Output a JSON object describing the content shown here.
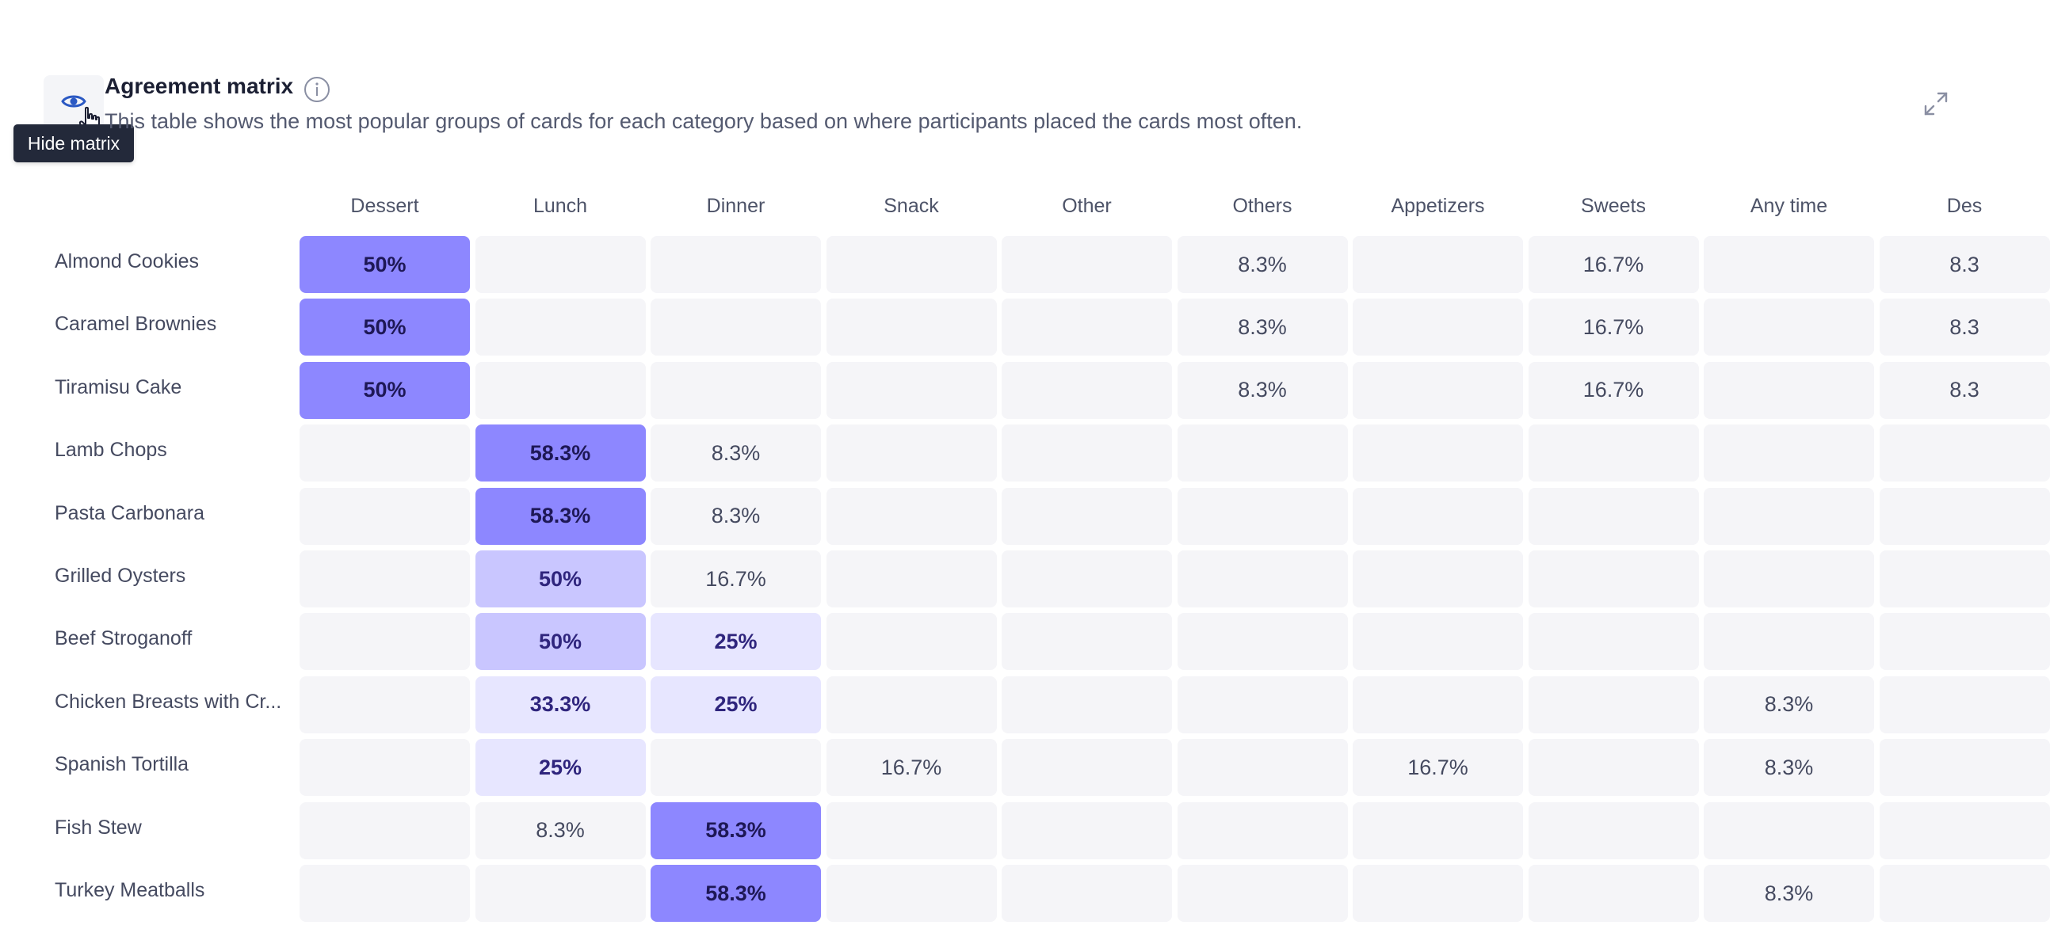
{
  "header": {
    "title": "Agreement matrix",
    "description": "This table shows the most popular groups of cards for each category based on where participants placed the cards most often.",
    "tooltip": "Hide matrix"
  },
  "icons": [
    "eye-icon",
    "pointer-cursor-icon",
    "info-icon",
    "expand-icon"
  ],
  "colors": {
    "strong": "#8d87ff",
    "medium": "#c9c6ff",
    "light": "#e7e6ff",
    "empty": "#f5f5f8",
    "eye": "#2b59c3"
  },
  "columns": [
    "Dessert",
    "Lunch",
    "Dinner",
    "Snack",
    "Other",
    "Others",
    "Appetizers",
    "Sweets",
    "Any time",
    "Des"
  ],
  "rows": [
    {
      "label": "Almond Cookies",
      "cells": [
        {
          "v": "50%",
          "s": 3
        },
        {
          "v": ""
        },
        {
          "v": ""
        },
        {
          "v": ""
        },
        {
          "v": ""
        },
        {
          "v": "8.3%"
        },
        {
          "v": ""
        },
        {
          "v": "16.7%"
        },
        {
          "v": ""
        },
        {
          "v": "8.3"
        }
      ]
    },
    {
      "label": "Caramel Brownies",
      "cells": [
        {
          "v": "50%",
          "s": 3
        },
        {
          "v": ""
        },
        {
          "v": ""
        },
        {
          "v": ""
        },
        {
          "v": ""
        },
        {
          "v": "8.3%"
        },
        {
          "v": ""
        },
        {
          "v": "16.7%"
        },
        {
          "v": ""
        },
        {
          "v": "8.3"
        }
      ]
    },
    {
      "label": "Tiramisu Cake",
      "cells": [
        {
          "v": "50%",
          "s": 3
        },
        {
          "v": ""
        },
        {
          "v": ""
        },
        {
          "v": ""
        },
        {
          "v": ""
        },
        {
          "v": "8.3%"
        },
        {
          "v": ""
        },
        {
          "v": "16.7%"
        },
        {
          "v": ""
        },
        {
          "v": "8.3"
        }
      ]
    },
    {
      "label": "Lamb Chops",
      "cells": [
        {
          "v": ""
        },
        {
          "v": "58.3%",
          "s": 3
        },
        {
          "v": "8.3%"
        },
        {
          "v": ""
        },
        {
          "v": ""
        },
        {
          "v": ""
        },
        {
          "v": ""
        },
        {
          "v": ""
        },
        {
          "v": ""
        },
        {
          "v": ""
        }
      ]
    },
    {
      "label": "Pasta Carbonara",
      "cells": [
        {
          "v": ""
        },
        {
          "v": "58.3%",
          "s": 3
        },
        {
          "v": "8.3%"
        },
        {
          "v": ""
        },
        {
          "v": ""
        },
        {
          "v": ""
        },
        {
          "v": ""
        },
        {
          "v": ""
        },
        {
          "v": ""
        },
        {
          "v": ""
        }
      ]
    },
    {
      "label": "Grilled Oysters",
      "cells": [
        {
          "v": ""
        },
        {
          "v": "50%",
          "s": 2
        },
        {
          "v": "16.7%"
        },
        {
          "v": ""
        },
        {
          "v": ""
        },
        {
          "v": ""
        },
        {
          "v": ""
        },
        {
          "v": ""
        },
        {
          "v": ""
        },
        {
          "v": ""
        }
      ]
    },
    {
      "label": "Beef Stroganoff",
      "cells": [
        {
          "v": ""
        },
        {
          "v": "50%",
          "s": 2
        },
        {
          "v": "25%",
          "s": 1
        },
        {
          "v": ""
        },
        {
          "v": ""
        },
        {
          "v": ""
        },
        {
          "v": ""
        },
        {
          "v": ""
        },
        {
          "v": ""
        },
        {
          "v": ""
        }
      ]
    },
    {
      "label": "Chicken Breasts with Cr...",
      "cells": [
        {
          "v": ""
        },
        {
          "v": "33.3%",
          "s": 1
        },
        {
          "v": "25%",
          "s": 1
        },
        {
          "v": ""
        },
        {
          "v": ""
        },
        {
          "v": ""
        },
        {
          "v": ""
        },
        {
          "v": ""
        },
        {
          "v": "8.3%"
        },
        {
          "v": ""
        }
      ]
    },
    {
      "label": "Spanish Tortilla",
      "cells": [
        {
          "v": ""
        },
        {
          "v": "25%",
          "s": 1
        },
        {
          "v": ""
        },
        {
          "v": "16.7%"
        },
        {
          "v": ""
        },
        {
          "v": ""
        },
        {
          "v": "16.7%"
        },
        {
          "v": ""
        },
        {
          "v": "8.3%"
        },
        {
          "v": ""
        }
      ]
    },
    {
      "label": "Fish Stew",
      "cells": [
        {
          "v": ""
        },
        {
          "v": "8.3%"
        },
        {
          "v": "58.3%",
          "s": 3
        },
        {
          "v": ""
        },
        {
          "v": ""
        },
        {
          "v": ""
        },
        {
          "v": ""
        },
        {
          "v": ""
        },
        {
          "v": ""
        },
        {
          "v": ""
        }
      ]
    },
    {
      "label": "Turkey Meatballs",
      "cells": [
        {
          "v": ""
        },
        {
          "v": ""
        },
        {
          "v": "58.3%",
          "s": 3
        },
        {
          "v": ""
        },
        {
          "v": ""
        },
        {
          "v": ""
        },
        {
          "v": ""
        },
        {
          "v": ""
        },
        {
          "v": "8.3%"
        },
        {
          "v": ""
        }
      ]
    }
  ]
}
